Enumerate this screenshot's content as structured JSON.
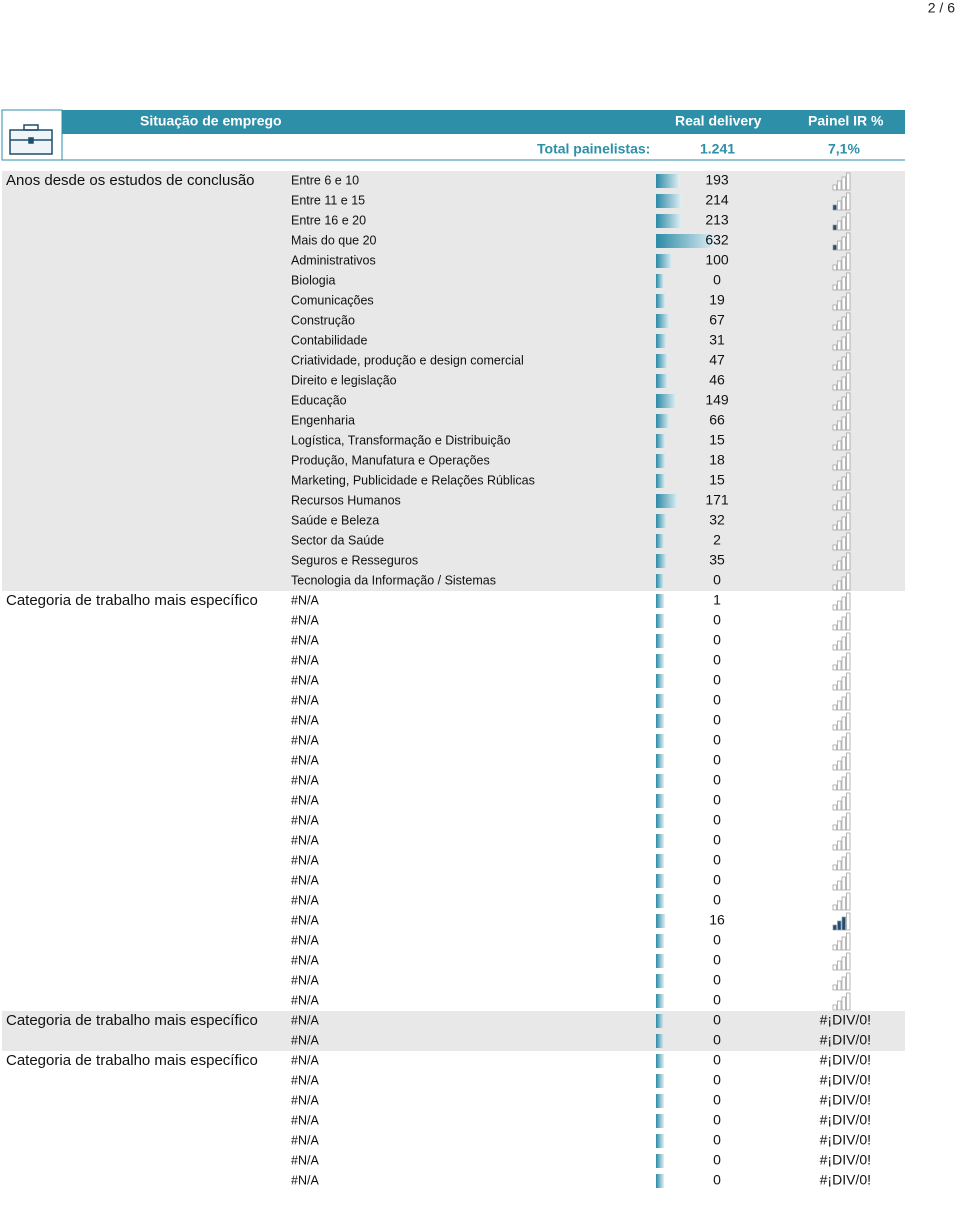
{
  "header": {
    "page": "2 / 6",
    "title": "Situação de emprego",
    "real_delivery": "Real delivery",
    "painel": "Painel IR %",
    "total_label": "Total painelistas:",
    "total_value": "1.241",
    "total_pct": "7,1%"
  },
  "groups": [
    {
      "label": "Anos desde os estudos de conclusão",
      "rows": [
        {
          "label": "Entre 6 e 10",
          "value": 193
        },
        {
          "label": "Entre 11 e 15",
          "value": 214
        },
        {
          "label": "Entre 16 e 20",
          "value": 213
        },
        {
          "label": "Mais do que 20",
          "value": 632
        },
        {
          "label": "Administrativos",
          "value": 100
        },
        {
          "label": "Biologia",
          "value": 0
        },
        {
          "label": "Comunicações",
          "value": 19
        },
        {
          "label": "Construção",
          "value": 67
        },
        {
          "label": "Contabilidade",
          "value": 31
        },
        {
          "label": "Criatividade, produção e design comercial",
          "value": 47
        },
        {
          "label": "Direito e legislação",
          "value": 46
        },
        {
          "label": "Educação",
          "value": 149
        },
        {
          "label": "Engenharia",
          "value": 66
        },
        {
          "label": "Logística, Transformação e Distribuição",
          "value": 15
        },
        {
          "label": "Produção, Manufatura e Operações",
          "value": 18
        },
        {
          "label": "Marketing, Publicidade e Relações Rúblicas",
          "value": 15
        },
        {
          "label": "Recursos Humanos",
          "value": 171
        },
        {
          "label": "Saúde e Beleza",
          "value": 32
        },
        {
          "label": "Sector da Saúde",
          "value": 2
        },
        {
          "label": "Seguros e Resseguros",
          "value": 35
        },
        {
          "label": "Tecnologia da Informação / Sistemas",
          "value": 0
        }
      ]
    },
    {
      "label": "Categoria de trabalho mais específico",
      "rows": [
        {
          "label": "#N/A",
          "value": 1
        },
        {
          "label": "#N/A",
          "value": 0
        },
        {
          "label": "#N/A",
          "value": 0
        },
        {
          "label": "#N/A",
          "value": 0
        },
        {
          "label": "#N/A",
          "value": 0
        },
        {
          "label": "#N/A",
          "value": 0
        },
        {
          "label": "#N/A",
          "value": 0
        },
        {
          "label": "#N/A",
          "value": 0
        },
        {
          "label": "#N/A",
          "value": 0
        },
        {
          "label": "#N/A",
          "value": 0
        },
        {
          "label": "#N/A",
          "value": 0
        },
        {
          "label": "#N/A",
          "value": 0
        },
        {
          "label": "#N/A",
          "value": 0
        },
        {
          "label": "#N/A",
          "value": 0
        },
        {
          "label": "#N/A",
          "value": 0
        },
        {
          "label": "#N/A",
          "value": 0
        },
        {
          "label": "#N/A",
          "value": 16
        },
        {
          "label": "#N/A",
          "value": 0
        },
        {
          "label": "#N/A",
          "value": 0
        },
        {
          "label": "#N/A",
          "value": 0
        },
        {
          "label": "#N/A",
          "value": 0
        }
      ]
    },
    {
      "label": "Categoria de trabalho mais específico",
      "rows": [
        {
          "label": "#N/A",
          "value": 0,
          "pct": "#¡DIV/0!"
        },
        {
          "label": "#N/A",
          "value": 0,
          "pct": "#¡DIV/0!"
        }
      ]
    },
    {
      "label": "Categoria de trabalho mais específico",
      "rows": [
        {
          "label": "#N/A",
          "value": 0,
          "pct": "#¡DIV/0!"
        },
        {
          "label": "#N/A",
          "value": 0,
          "pct": "#¡DIV/0!"
        },
        {
          "label": "#N/A",
          "value": 0,
          "pct": "#¡DIV/0!"
        },
        {
          "label": "#N/A",
          "value": 0,
          "pct": "#¡DIV/0!"
        },
        {
          "label": "#N/A",
          "value": 0,
          "pct": "#¡DIV/0!"
        },
        {
          "label": "#N/A",
          "value": 0,
          "pct": "#¡DIV/0!"
        },
        {
          "label": "#N/A",
          "value": 0,
          "pct": "#¡DIV/0!"
        }
      ]
    }
  ]
}
